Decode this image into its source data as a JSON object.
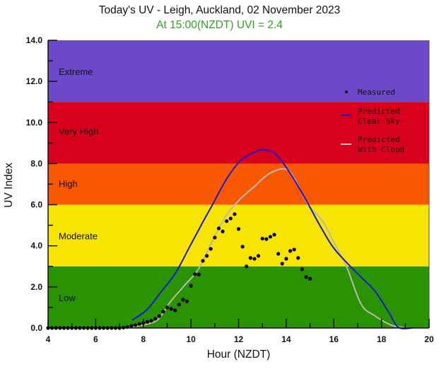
{
  "header": {
    "title": "Today's UV - Leigh, Auckland, 02 November 2023",
    "subtitle": "At 15:00(NZDT) UVI =  2.4",
    "subtitle_color": "#2ea024"
  },
  "chart_data": {
    "type": "scatter",
    "title": "Today's UV - Leigh, Auckland, 02 November 2023",
    "subtitle": "At 15:00(NZDT) UVI =  2.4",
    "xlabel": "Hour (NZDT)",
    "ylabel": "UV Index",
    "xlim": [
      4,
      20
    ],
    "ylim": [
      0,
      14
    ],
    "x_ticks": [
      4,
      6,
      8,
      10,
      12,
      14,
      16,
      18,
      20
    ],
    "y_ticks": [
      "0.0",
      "2.0",
      "4.0",
      "6.0",
      "8.0",
      "10.0",
      "12.0",
      "14.0"
    ],
    "grid": false,
    "legend_position": "upper right",
    "bands": [
      {
        "label": "Low",
        "from": 0,
        "to": 3,
        "color": "#2a9302"
      },
      {
        "label": "Moderate",
        "from": 3,
        "to": 6,
        "color": "#f7e400"
      },
      {
        "label": "High",
        "from": 6,
        "to": 8,
        "color": "#f85900"
      },
      {
        "label": "Very High",
        "from": 8,
        "to": 11,
        "color": "#d8001d"
      },
      {
        "label": "Extreme",
        "from": 11,
        "to": 14,
        "color": "#6b49c8"
      }
    ],
    "series": [
      {
        "name": "Measured",
        "style": "points",
        "color": "#000000",
        "x": [
          4.0,
          4.167,
          4.333,
          4.5,
          4.667,
          4.833,
          5.0,
          5.167,
          5.333,
          5.5,
          5.667,
          5.833,
          6.0,
          6.167,
          6.333,
          6.5,
          6.667,
          6.833,
          7.0,
          7.167,
          7.333,
          7.5,
          7.667,
          7.833,
          8.0,
          8.167,
          8.333,
          8.5,
          8.667,
          8.833,
          9.0,
          9.167,
          9.333,
          9.5,
          9.667,
          9.833,
          10.0,
          10.167,
          10.333,
          10.5,
          10.667,
          10.833,
          11.0,
          11.167,
          11.333,
          11.5,
          11.667,
          11.833,
          12.0,
          12.167,
          12.333,
          12.5,
          12.667,
          12.833,
          13.0,
          13.167,
          13.333,
          13.5,
          13.667,
          13.833,
          14.0,
          14.167,
          14.333,
          14.5,
          14.667,
          14.833,
          15.0
        ],
        "values": [
          0,
          0,
          0,
          0,
          0,
          0,
          0,
          0,
          0,
          0,
          0,
          0,
          0,
          0,
          0,
          0,
          0,
          0,
          0,
          0.02,
          0.05,
          0.1,
          0.14,
          0.2,
          0.24,
          0.3,
          0.35,
          0.45,
          0.58,
          0.8,
          1.0,
          0.93,
          0.86,
          1.14,
          1.38,
          1.3,
          2.05,
          2.62,
          2.6,
          3.27,
          3.51,
          3.85,
          4.4,
          4.85,
          4.7,
          5.2,
          5.33,
          5.54,
          4.82,
          3.96,
          3.0,
          3.41,
          3.37,
          3.51,
          4.35,
          4.33,
          4.44,
          4.54,
          3.61,
          3.13,
          3.37,
          3.75,
          3.82,
          3.41,
          2.86,
          2.48,
          2.4
        ]
      },
      {
        "name": "Predicted Clear Sky",
        "style": "line",
        "color": "#1a1ad0",
        "x": [
          7.53,
          8.15,
          8.74,
          9.34,
          9.93,
          10.52,
          10.9,
          11.5,
          12.09,
          12.68,
          13.05,
          13.57,
          14.17,
          14.76,
          15.36,
          15.95,
          16.55,
          17.14,
          17.73,
          18.33,
          18.71,
          19.3
        ],
        "values": [
          0.38,
          0.89,
          1.75,
          2.65,
          3.92,
          5.2,
          5.99,
          7.26,
          8.15,
          8.56,
          8.67,
          8.45,
          7.52,
          6.38,
          5.1,
          3.96,
          3.17,
          2.48,
          1.79,
          0.72,
          0.03,
          0.0
        ]
      },
      {
        "name": "Predicted With Cloud",
        "style": "line",
        "color": "#b8b8b8",
        "x": [
          7.4,
          7.8,
          8.45,
          8.74,
          9.13,
          9.72,
          10.31,
          10.9,
          11.5,
          12.09,
          12.68,
          13.27,
          13.94,
          14.35,
          14.94,
          15.53,
          16.0,
          16.52,
          17.14,
          17.73,
          18.41,
          19.1
        ],
        "values": [
          0.03,
          0.1,
          0.29,
          0.58,
          1.27,
          2.06,
          2.86,
          4.23,
          5.5,
          6.3,
          6.9,
          7.5,
          7.74,
          7.26,
          5.98,
          5.2,
          4.16,
          3.03,
          1.17,
          0.59,
          0.14,
          0.0
        ]
      }
    ]
  },
  "legend": {
    "measured": "Measured",
    "clear_line1": "Predicted",
    "clear_line2": "Clear Sky",
    "cloud_line1": "Predicted",
    "cloud_line2": "With Cloud"
  }
}
